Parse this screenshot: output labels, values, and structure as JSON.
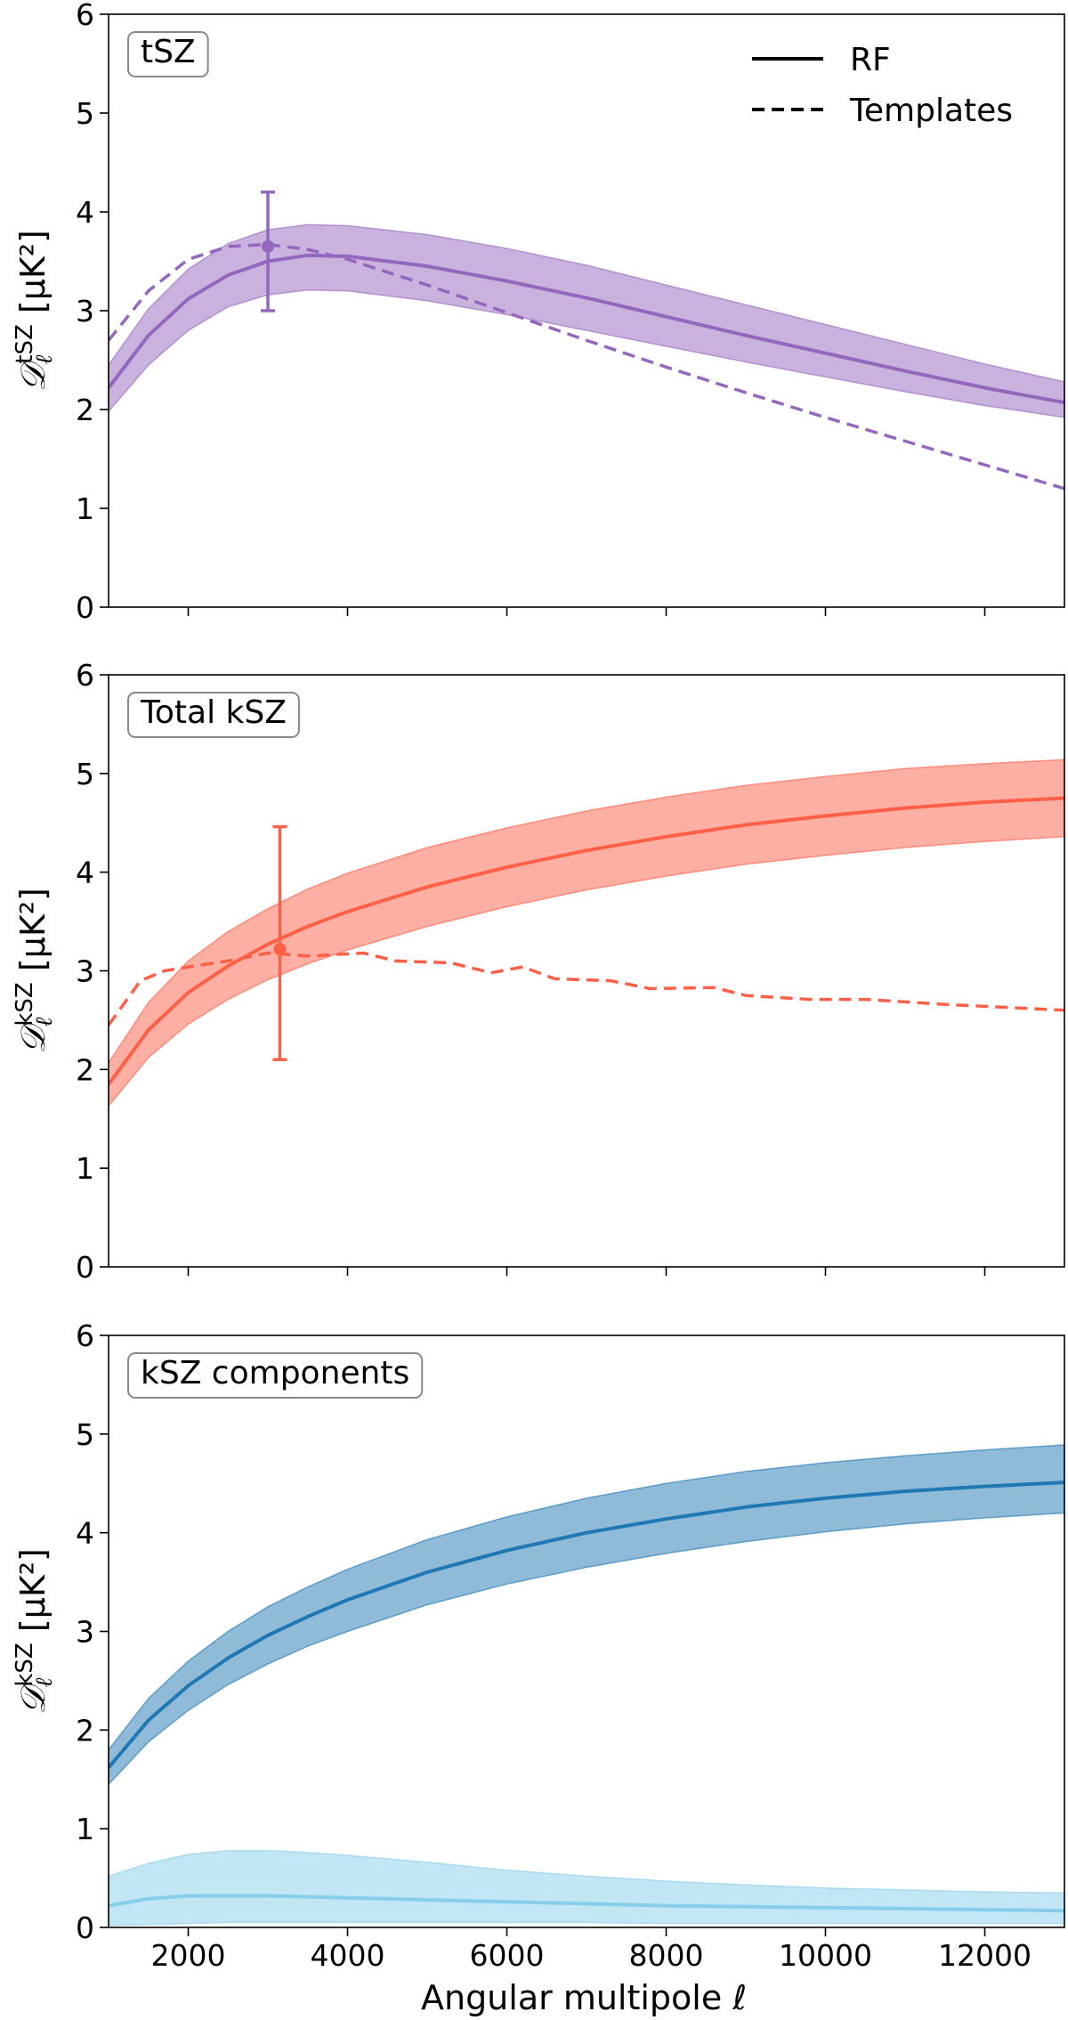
{
  "figure": {
    "xlabel": "Angular multipole ℓ",
    "legend": {
      "placement": "top-right of first panel",
      "entries": [
        {
          "label": "RF",
          "linestyle": "solid"
        },
        {
          "label": "Templates",
          "linestyle": "dashed"
        }
      ]
    }
  },
  "chart_data": [
    {
      "type": "line",
      "panel_label": "tSZ",
      "ylabel": "D_ℓ^tSZ [μK²]",
      "ylabel_main": "𝒟",
      "ylabel_sub": "ℓ",
      "ylabel_sup": "tSZ",
      "ylabel_unit": " [μK²]",
      "xlim": [
        1000,
        13000
      ],
      "ylim": [
        0,
        6
      ],
      "xticks": [
        2000,
        4000,
        6000,
        8000,
        10000,
        12000
      ],
      "yticks": [
        0,
        1,
        2,
        3,
        4,
        5,
        6
      ],
      "show_x_ticklabels": false,
      "grid": false,
      "series": [
        {
          "name": "RF",
          "color": "#9467bd",
          "linestyle": "solid",
          "x": [
            1000,
            1500,
            2000,
            2500,
            3000,
            3500,
            4000,
            5000,
            6000,
            7000,
            8000,
            9000,
            10000,
            11000,
            12000,
            13000
          ],
          "y": [
            2.22,
            2.75,
            3.12,
            3.36,
            3.5,
            3.56,
            3.55,
            3.45,
            3.3,
            3.13,
            2.94,
            2.75,
            2.57,
            2.39,
            2.22,
            2.07
          ],
          "band_low": [
            1.98,
            2.45,
            2.8,
            3.04,
            3.16,
            3.21,
            3.2,
            3.1,
            2.96,
            2.8,
            2.64,
            2.48,
            2.33,
            2.18,
            2.04,
            1.92
          ],
          "band_high": [
            2.45,
            3.02,
            3.42,
            3.68,
            3.82,
            3.87,
            3.86,
            3.77,
            3.63,
            3.46,
            3.26,
            3.06,
            2.86,
            2.66,
            2.46,
            2.28
          ]
        },
        {
          "name": "Templates",
          "color": "#9467bd",
          "linestyle": "dashed",
          "x": [
            1000,
            1500,
            2000,
            2500,
            3000,
            3500,
            4000,
            5000,
            6000,
            7000,
            8000,
            9000,
            10000,
            11000,
            12000,
            13000
          ],
          "y": [
            2.7,
            3.2,
            3.52,
            3.65,
            3.67,
            3.62,
            3.52,
            3.26,
            2.98,
            2.7,
            2.43,
            2.17,
            1.92,
            1.68,
            1.44,
            1.2
          ]
        }
      ],
      "errorbar": {
        "x": 3000,
        "y": 3.65,
        "ylow": 3.0,
        "yhigh": 4.2,
        "color": "#9467bd"
      }
    },
    {
      "type": "line",
      "panel_label": "Total kSZ",
      "ylabel": "D_ℓ^kSZ [μK²]",
      "ylabel_main": "𝒟",
      "ylabel_sub": "ℓ",
      "ylabel_sup": "kSZ",
      "ylabel_unit": " [μK²]",
      "xlim": [
        1000,
        13000
      ],
      "ylim": [
        0,
        6
      ],
      "xticks": [
        2000,
        4000,
        6000,
        8000,
        10000,
        12000
      ],
      "yticks": [
        0,
        1,
        2,
        3,
        4,
        5,
        6
      ],
      "show_x_ticklabels": false,
      "grid": false,
      "series": [
        {
          "name": "RF",
          "color": "#fe6047",
          "linestyle": "solid",
          "x": [
            1000,
            1500,
            2000,
            2500,
            3000,
            3500,
            4000,
            5000,
            6000,
            7000,
            8000,
            9000,
            10000,
            11000,
            12000,
            13000
          ],
          "y": [
            1.85,
            2.4,
            2.78,
            3.05,
            3.27,
            3.45,
            3.6,
            3.85,
            4.05,
            4.22,
            4.36,
            4.48,
            4.57,
            4.65,
            4.71,
            4.75
          ],
          "band_low": [
            1.63,
            2.12,
            2.46,
            2.71,
            2.91,
            3.07,
            3.21,
            3.45,
            3.65,
            3.82,
            3.96,
            4.08,
            4.17,
            4.25,
            4.31,
            4.36
          ],
          "band_high": [
            2.07,
            2.68,
            3.1,
            3.4,
            3.63,
            3.83,
            3.99,
            4.25,
            4.45,
            4.62,
            4.76,
            4.88,
            4.97,
            5.05,
            5.1,
            5.14
          ]
        },
        {
          "name": "Templates",
          "color": "#fe6047",
          "linestyle": "dashed",
          "x": [
            1000,
            1400,
            1700,
            2000,
            2500,
            3000,
            3500,
            4200,
            4600,
            5300,
            5800,
            6200,
            6600,
            7300,
            7800,
            8600,
            9000,
            9800,
            10500,
            11500,
            13000
          ],
          "y": [
            2.45,
            2.9,
            3.0,
            3.04,
            3.1,
            3.18,
            3.15,
            3.18,
            3.1,
            3.08,
            2.98,
            3.04,
            2.92,
            2.9,
            2.82,
            2.83,
            2.75,
            2.71,
            2.71,
            2.66,
            2.6
          ]
        }
      ],
      "errorbar": {
        "x": 3150,
        "y": 3.22,
        "ylow": 2.1,
        "yhigh": 4.46,
        "color": "#fe6047"
      }
    },
    {
      "type": "line",
      "panel_label": "kSZ components",
      "ylabel": "D_ℓ^kSZ [μK²]",
      "ylabel_main": "𝒟",
      "ylabel_sub": "ℓ",
      "ylabel_sup": "kSZ",
      "ylabel_unit": " [μK²]",
      "xlim": [
        1000,
        13000
      ],
      "ylim": [
        0,
        6
      ],
      "xticks": [
        2000,
        4000,
        6000,
        8000,
        10000,
        12000
      ],
      "yticks": [
        0,
        1,
        2,
        3,
        4,
        5,
        6
      ],
      "show_x_ticklabels": true,
      "grid": false,
      "series": [
        {
          "name": "",
          "color": "#1f77b4",
          "linestyle": "solid",
          "x": [
            1000,
            1500,
            2000,
            2500,
            3000,
            3500,
            4000,
            5000,
            6000,
            7000,
            8000,
            9000,
            10000,
            11000,
            12000,
            13000
          ],
          "y": [
            1.62,
            2.1,
            2.45,
            2.73,
            2.96,
            3.15,
            3.32,
            3.6,
            3.82,
            4.0,
            4.14,
            4.26,
            4.35,
            4.42,
            4.47,
            4.51
          ],
          "band_low": [
            1.45,
            1.88,
            2.2,
            2.46,
            2.67,
            2.85,
            3.0,
            3.27,
            3.48,
            3.65,
            3.79,
            3.91,
            4.01,
            4.09,
            4.15,
            4.2
          ],
          "band_high": [
            1.8,
            2.32,
            2.7,
            3.0,
            3.25,
            3.45,
            3.63,
            3.93,
            4.16,
            4.35,
            4.5,
            4.62,
            4.71,
            4.78,
            4.84,
            4.89
          ]
        },
        {
          "name": "",
          "color": "#87ceeb",
          "linestyle": "solid",
          "x": [
            1000,
            1500,
            2000,
            2500,
            3000,
            3500,
            4000,
            5000,
            6000,
            7000,
            8000,
            9000,
            10000,
            11000,
            12000,
            13000
          ],
          "y": [
            0.22,
            0.29,
            0.32,
            0.32,
            0.32,
            0.31,
            0.3,
            0.28,
            0.26,
            0.24,
            0.22,
            0.21,
            0.2,
            0.19,
            0.18,
            0.17
          ],
          "band_low": [
            0.02,
            0.03,
            0.04,
            0.05,
            0.05,
            0.05,
            0.05,
            0.05,
            0.05,
            0.05,
            0.04,
            0.04,
            0.04,
            0.04,
            0.04,
            0.04
          ],
          "band_high": [
            0.52,
            0.65,
            0.74,
            0.78,
            0.78,
            0.76,
            0.73,
            0.66,
            0.58,
            0.52,
            0.47,
            0.43,
            0.4,
            0.38,
            0.36,
            0.35
          ]
        }
      ]
    }
  ]
}
